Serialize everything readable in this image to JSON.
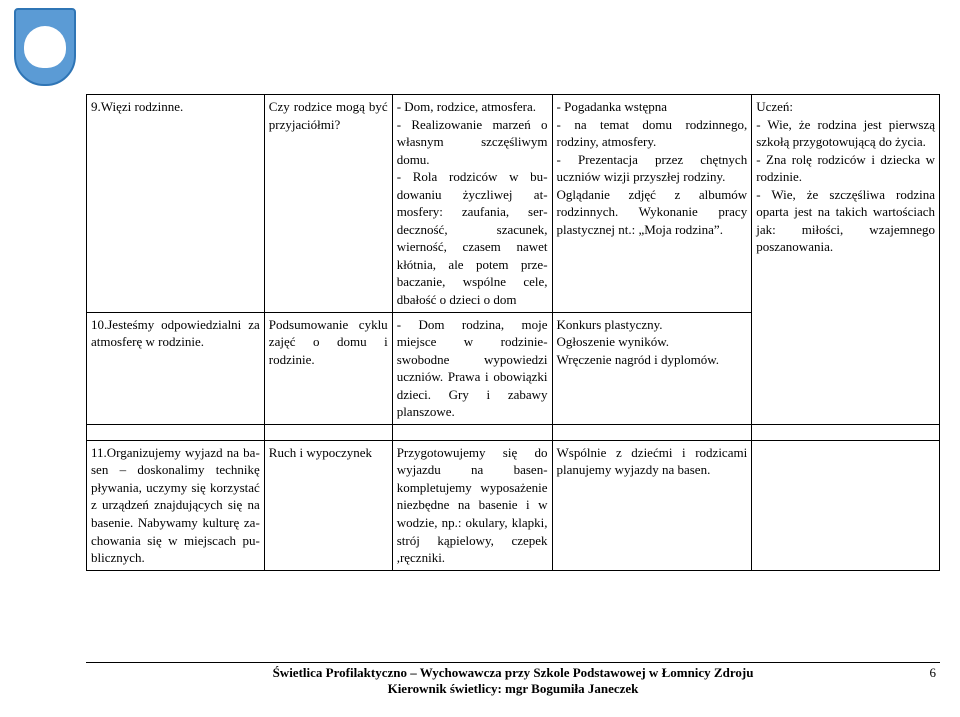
{
  "logo": {
    "bg_color": "#5b9bd5",
    "border_color": "#2f75b5"
  },
  "table": {
    "columns": [
      "col0",
      "col1",
      "col2",
      "col3",
      "col4"
    ],
    "bodyRows": [
      [
        "9.Więzi rodzinne.",
        "Czy rodzice mogą być przyjaciółmi?",
        "- Dom, rodzice, atmosfe­ra.\n- Realizowanie marzeń o własnym szczęśliwym domu.\n- Rola rodziców w bu­dowaniu życzliwej at­mosfery: zaufania, ser­deczność, szacunek, wierność, czasem nawet kłótnia, ale potem prze­baczanie, wspólne cele, dbałość o dzieci o dom",
        "- Pogadanka wstępna\n- na temat domu rodzinnego, rodziny, atmosfery.\n- Prezentacja przez chętnych uczniów wizji przyszłej ro­dziny.\nOglądanie zdjęć z albumów rodzinnych. Wykonanie pra­cy plastycznej nt.: „Moja rodzina”.",
        "Uczeń:\n- Wie, że rodzina jest pierwszą szkołą przygo­towującą do życia.\n- Zna rolę rodziców i dziecka w rodzinie.\n- Wie, że szczęśliwa ro­dzina oparta jest na ta­kich wartościach jak: miłości, wzajemnego poszanowania."
      ],
      [
        "10.Jesteśmy odpowiedzialni za atmosferę w rodzinie.",
        "Podsumowanie cy­klu zajęć o domu i rodzinie.",
        "- Dom rodzina, moje miejsce w rodzinie- swobodne wypowiedzi uczniów. Prawa i obo­wiązki dzieci. Gry i za­bawy planszowe.",
        "Konkurs plastyczny.\nOgłoszenie wyników.\nWręczenie nagród i dyplo­mów.",
        ""
      ],
      [
        "11.Organizujemy wyjazd na ba­sen – doskonalimy technikę pływania, uczymy się korzystać z urządzeń znajdujących się na basenie. Nabywamy kulturę za­chowania się w miejscach pu­blicznych.",
        "Ruch i wypoczynek",
        "Przygotowujemy się do wyjazdu na basen- kompletujemy wyposa­żenie niezbędne na base­nie i w wodzie, np.: oku­lary, klapki, strój kąpie­lowy, czepek ,ręczniki.",
        "Wspólnie z dziećmi i rodzi­cami planujemy wyjazdy na basen.",
        ""
      ]
    ],
    "rowspans": {
      "col4_row0": 2
    },
    "spacerRow": true
  },
  "footer": {
    "line1": "Świetlica Profilaktyczno – Wychowawcza przy Szkole Podstawowej  w Łomnicy Zdroju",
    "line2": "Kierownik świetlicy: mgr Bogumiła Janeczek",
    "page": "6"
  }
}
